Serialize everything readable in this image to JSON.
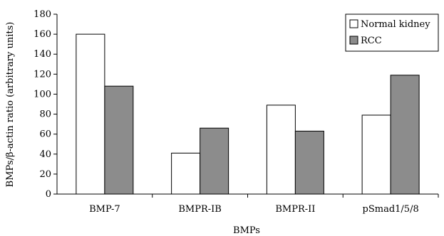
{
  "chart_data": {
    "type": "bar",
    "categories": [
      "BMP-7",
      "BMPR-IB",
      "BMPR-II",
      "pSmad1/5/8"
    ],
    "series": [
      {
        "name": "Normal kidney",
        "values": [
          160,
          41,
          89,
          79
        ],
        "color": "#ffffff"
      },
      {
        "name": "RCC",
        "values": [
          108,
          66,
          63,
          119
        ],
        "color": "#8c8c8c"
      }
    ],
    "xlabel": "BMPs",
    "ylabel": "BMPs/β-actin ratio (arbitrary units)",
    "ylim": [
      0,
      180
    ],
    "yticks": [
      0,
      20,
      40,
      60,
      80,
      100,
      120,
      140,
      160,
      180
    ],
    "grid": false,
    "legend_position": "top-right"
  }
}
